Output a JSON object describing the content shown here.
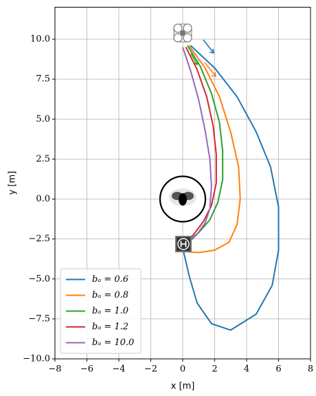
{
  "chart_data": {
    "type": "line",
    "xlabel": "x [m]",
    "ylabel": "y [m]",
    "xlim": [
      -8,
      8
    ],
    "ylim": [
      -10,
      12
    ],
    "xticks": [
      {
        "value": -8,
        "label": "−8"
      },
      {
        "value": -6,
        "label": "−6"
      },
      {
        "value": -4,
        "label": "−4"
      },
      {
        "value": -2,
        "label": "−2"
      },
      0,
      2,
      4,
      6,
      8
    ],
    "yticks": [
      {
        "value": -10,
        "label": "−10.0"
      },
      {
        "value": -7.5,
        "label": "−7.5"
      },
      {
        "value": -5,
        "label": "−5.0"
      },
      {
        "value": -2.5,
        "label": "−2.5"
      },
      {
        "value": 0,
        "label": "0.0"
      },
      2.5,
      {
        "value": 5,
        "label": "5.0"
      },
      7.5,
      {
        "value": 10,
        "label": "10.0"
      }
    ],
    "grid": true,
    "legend": "lower left",
    "series": [
      {
        "name": "bₐ = 0.6",
        "color": "#1f77b4",
        "x": [
          0.5,
          2.0,
          3.4,
          4.6,
          5.5,
          6.0,
          6.0,
          5.6,
          4.6,
          3.0,
          1.8,
          0.9,
          0.4,
          0.1,
          0.0
        ],
        "y": [
          9.6,
          8.2,
          6.4,
          4.2,
          2.0,
          -0.5,
          -3.2,
          -5.4,
          -7.2,
          -8.2,
          -7.8,
          -6.5,
          -4.8,
          -3.5,
          -3.0
        ]
      },
      {
        "name": "bₐ = 0.8",
        "color": "#ff7f0e",
        "x": [
          0.4,
          1.4,
          2.3,
          3.0,
          3.5,
          3.6,
          3.4,
          2.9,
          2.0,
          1.0,
          0.3,
          0.0
        ],
        "y": [
          9.6,
          8.2,
          6.4,
          4.2,
          2.0,
          0.0,
          -1.6,
          -2.7,
          -3.2,
          -3.35,
          -3.3,
          -3.0
        ]
      },
      {
        "name": "bₐ = 1.0",
        "color": "#2ca02c",
        "x": [
          0.3,
          1.1,
          1.8,
          2.3,
          2.5,
          2.5,
          2.2,
          1.7,
          1.0,
          0.4,
          0.0
        ],
        "y": [
          9.6,
          8.3,
          6.6,
          4.8,
          3.0,
          1.2,
          -0.2,
          -1.3,
          -2.1,
          -2.6,
          -3.0
        ]
      },
      {
        "name": "bₐ = 1.2",
        "color": "#d62728",
        "x": [
          0.2,
          0.9,
          1.5,
          1.9,
          2.1,
          2.1,
          1.8,
          1.3,
          0.7,
          0.2,
          0.0
        ],
        "y": [
          9.5,
          8.1,
          6.4,
          4.6,
          2.8,
          1.0,
          -0.4,
          -1.4,
          -2.2,
          -2.7,
          -3.0
        ]
      },
      {
        "name": "bₐ = 10.0",
        "color": "#9467bd",
        "x": [
          0.0,
          0.5,
          1.0,
          1.4,
          1.7,
          1.8,
          1.7,
          1.4,
          0.9,
          0.4,
          0.0
        ],
        "y": [
          9.5,
          8.0,
          6.2,
          4.3,
          2.5,
          0.8,
          -0.6,
          -1.5,
          -2.2,
          -2.7,
          -3.0
        ]
      }
    ]
  }
}
